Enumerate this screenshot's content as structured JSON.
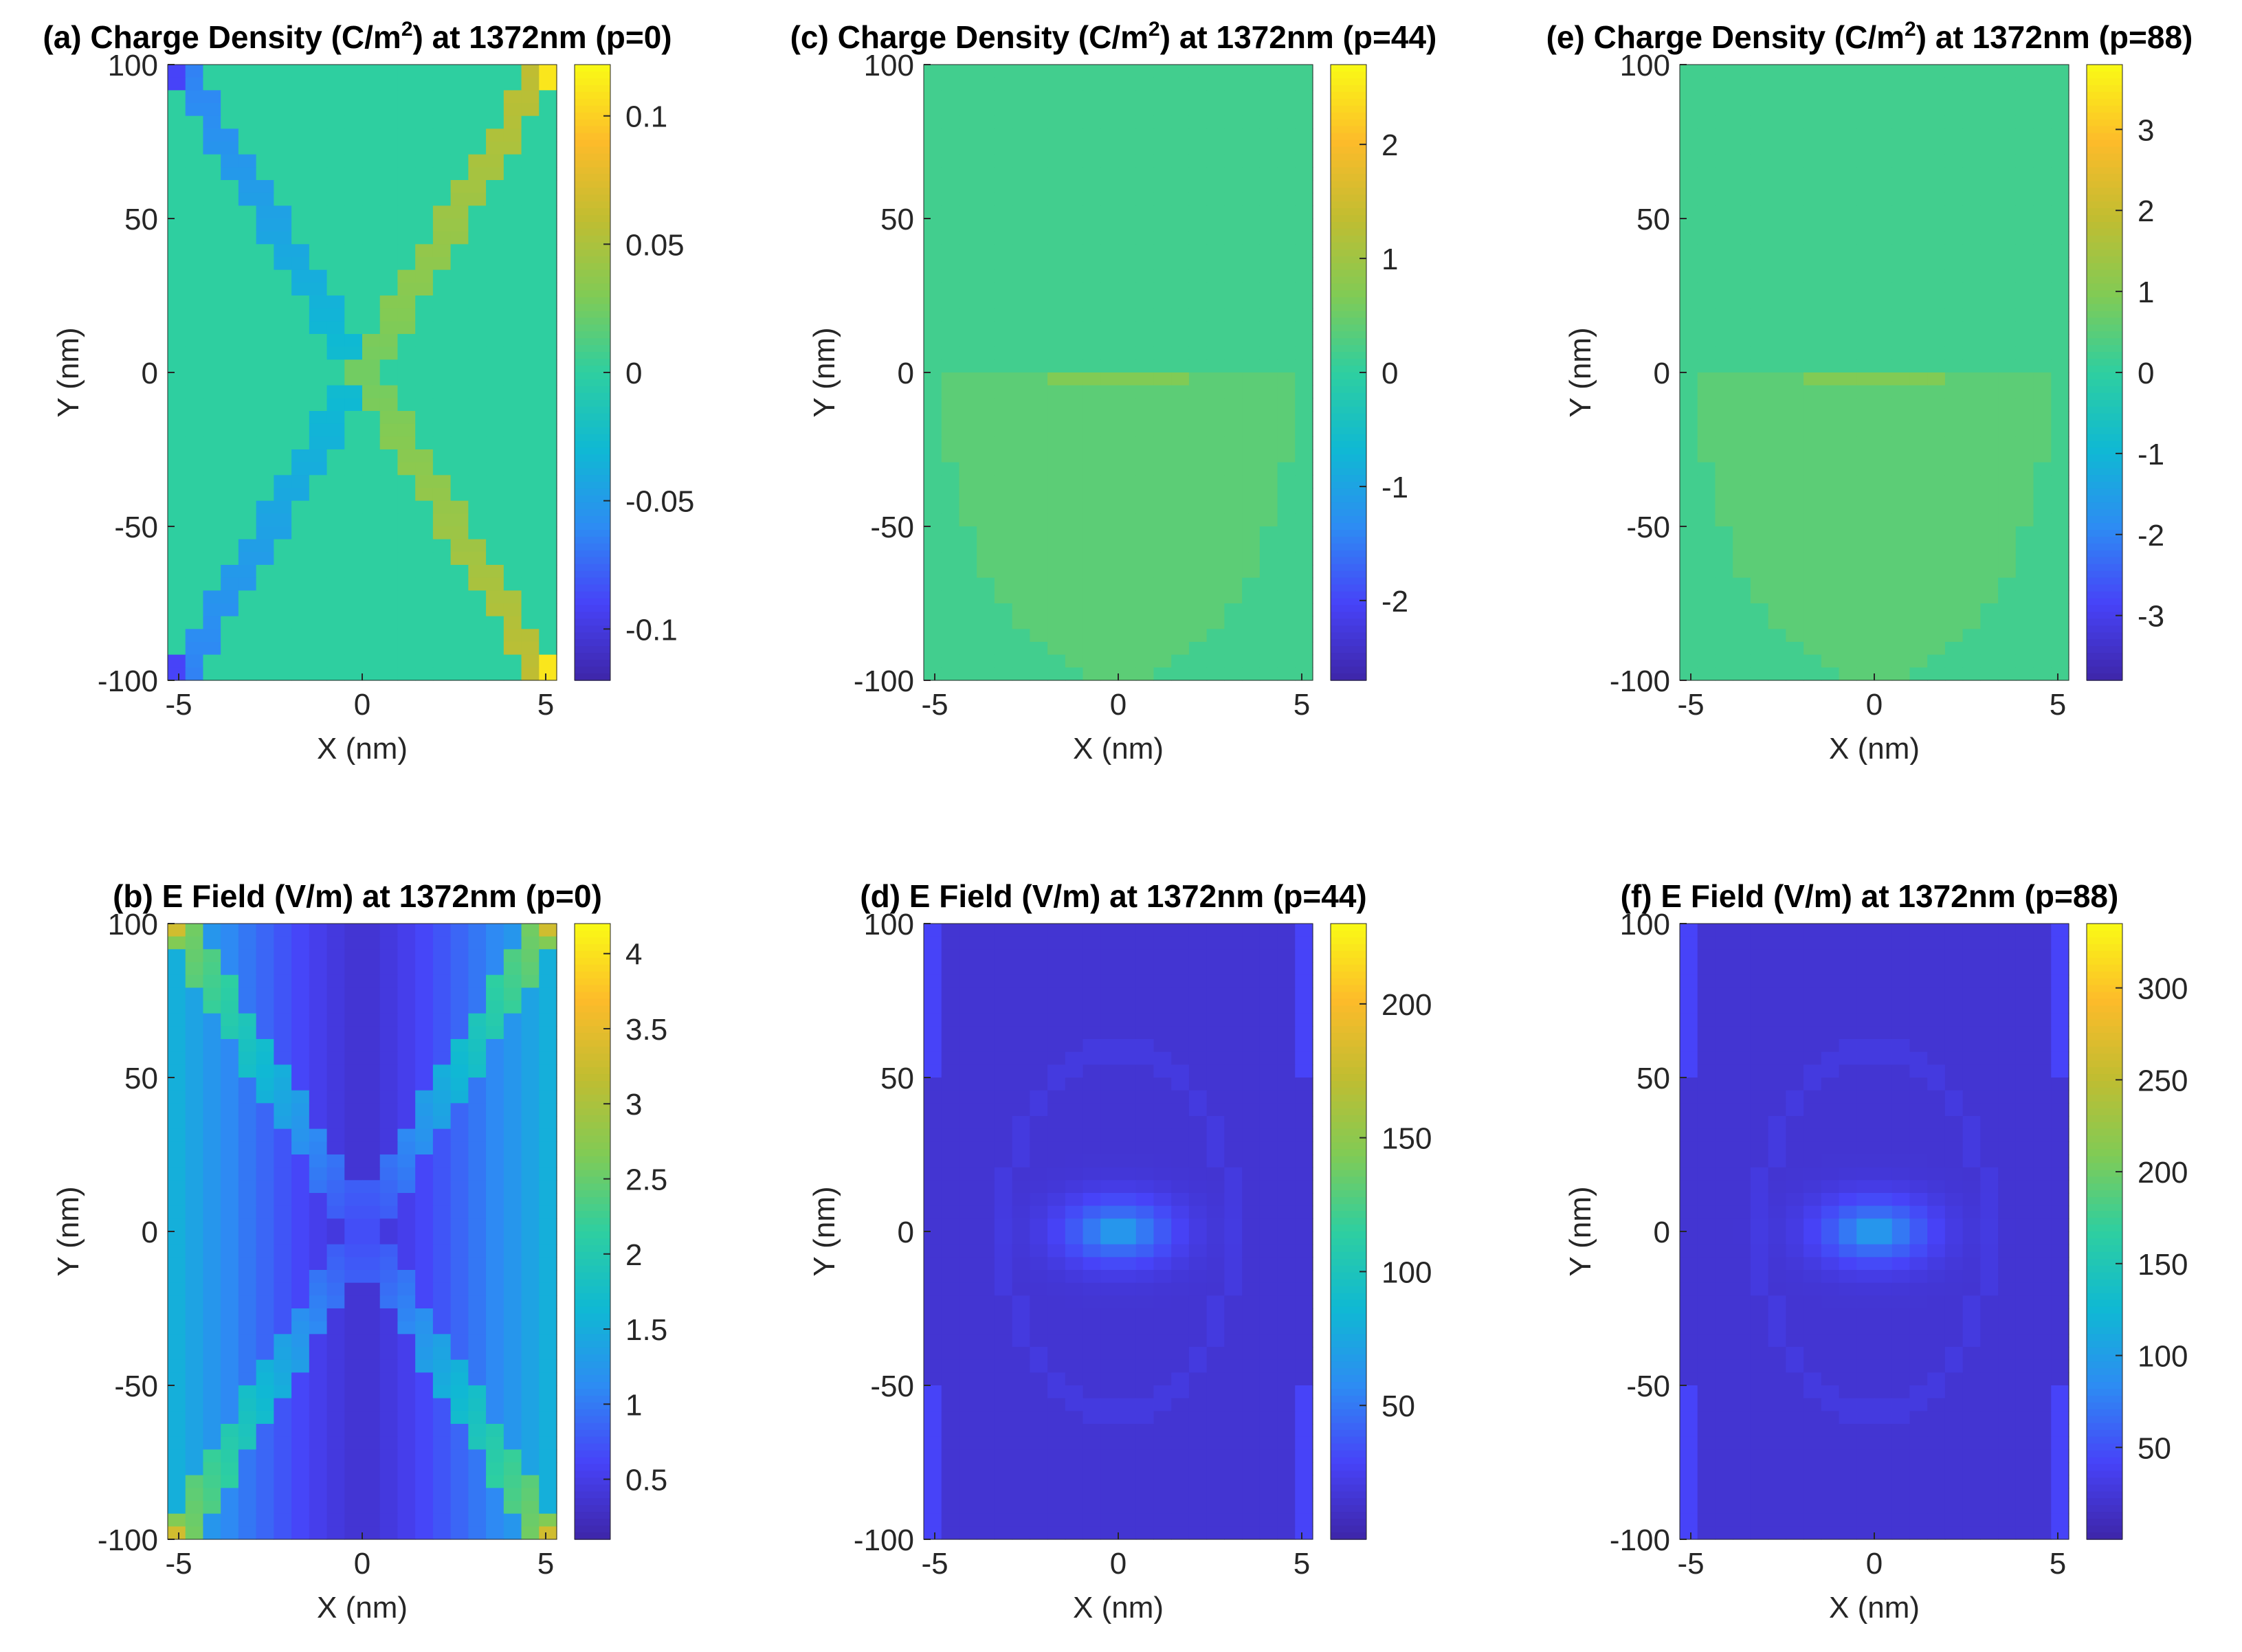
{
  "figure": {
    "colormap": [
      "#3e26a8",
      "#4743f8",
      "#2d8cf3",
      "#0fb9d3",
      "#2ecfa0",
      "#81cb55",
      "#c1bd31",
      "#fdbb2a",
      "#f9fb15"
    ]
  },
  "chart_data": [
    {
      "id": "a",
      "type": "heatmap",
      "title_pre": "(a) Charge Density (C/m",
      "title_sup": "2",
      "title_post": ") at 1372nm (p=0)",
      "title": "(a) Charge Density (C/m2) at 1372nm (p=0)",
      "xlabel": "X (nm)",
      "ylabel": "Y (nm)",
      "xlim": [
        -5.3,
        5.3
      ],
      "ylim": [
        -100,
        100
      ],
      "xticks": [
        -5,
        0,
        5
      ],
      "xtick_labels": [
        "-5",
        "0",
        "5"
      ],
      "yticks": [
        100,
        50,
        0,
        -50,
        -100
      ],
      "ytick_labels": [
        "100",
        "50",
        "0",
        "-50",
        "-100"
      ],
      "clim": [
        -0.12,
        0.12
      ],
      "cticks": [
        0.1,
        0.05,
        0,
        -0.05,
        -0.1
      ],
      "ctick_labels": [
        "0.1",
        "0.05",
        "0",
        "-0.05",
        "-0.1"
      ],
      "pattern": "x-lines",
      "background": 0.0
    },
    {
      "id": "b",
      "type": "heatmap",
      "title": "(b) E Field (V/m) at 1372nm (p=0)",
      "xlabel": "X (nm)",
      "ylabel": "Y (nm)",
      "xlim": [
        -5.3,
        5.3
      ],
      "ylim": [
        -100,
        100
      ],
      "xticks": [
        -5,
        0,
        5
      ],
      "xtick_labels": [
        "-5",
        "0",
        "5"
      ],
      "yticks": [
        100,
        50,
        0,
        -50,
        -100
      ],
      "ytick_labels": [
        "100",
        "50",
        "0",
        "-50",
        "-100"
      ],
      "clim": [
        0.1,
        4.2
      ],
      "cticks": [
        4,
        3.5,
        3,
        2.5,
        2,
        1.5,
        1,
        0.5
      ],
      "ctick_labels": [
        "4",
        "3.5",
        "3",
        "2.5",
        "2",
        "1.5",
        "1",
        "0.5"
      ],
      "pattern": "x-field",
      "background": 1.0
    },
    {
      "id": "c",
      "type": "heatmap",
      "title_pre": "(c) Charge Density (C/m",
      "title_sup": "2",
      "title_post": ") at 1372nm (p=44)",
      "title": "(c) Charge Density (C/m2) at 1372nm (p=44)",
      "xlabel": "X (nm)",
      "ylabel": "Y (nm)",
      "xlim": [
        -5.3,
        5.3
      ],
      "ylim": [
        -100,
        100
      ],
      "xticks": [
        -5,
        0,
        5
      ],
      "xtick_labels": [
        "-5",
        "0",
        "5"
      ],
      "yticks": [
        100,
        50,
        0,
        -50,
        -100
      ],
      "ytick_labels": [
        "100",
        "50",
        "0",
        "-50",
        "-100"
      ],
      "clim": [
        -2.7,
        2.7
      ],
      "cticks": [
        2,
        1,
        0,
        -1,
        -2
      ],
      "ctick_labels": [
        "2",
        "1",
        "0",
        "-1",
        "-2"
      ],
      "pattern": "arc-charge",
      "background": 0.0
    },
    {
      "id": "d",
      "type": "heatmap",
      "title": "(d) E Field (V/m) at 1372nm (p=44)",
      "xlabel": "X (nm)",
      "ylabel": "Y (nm)",
      "xlim": [
        -5.3,
        5.3
      ],
      "ylim": [
        -100,
        100
      ],
      "xticks": [
        -5,
        0,
        5
      ],
      "xtick_labels": [
        "-5",
        "0",
        "5"
      ],
      "yticks": [
        100,
        50,
        0,
        -50,
        -100
      ],
      "ytick_labels": [
        "100",
        "50",
        "0",
        "-50",
        "-100"
      ],
      "clim": [
        0,
        230
      ],
      "cticks": [
        200,
        150,
        100,
        50
      ],
      "ctick_labels": [
        "200",
        "150",
        "100",
        "50"
      ],
      "pattern": "hotspot",
      "background": 15
    },
    {
      "id": "e",
      "type": "heatmap",
      "title_pre": "(e) Charge Density (C/m",
      "title_sup": "2",
      "title_post": ") at 1372nm (p=88)",
      "title": "(e) Charge Density (C/m2) at 1372nm (p=88)",
      "xlabel": "X (nm)",
      "ylabel": "Y (nm)",
      "xlim": [
        -5.3,
        5.3
      ],
      "ylim": [
        -100,
        100
      ],
      "xticks": [
        -5,
        0,
        5
      ],
      "xtick_labels": [
        "-5",
        "0",
        "5"
      ],
      "yticks": [
        100,
        50,
        0,
        -50,
        -100
      ],
      "ytick_labels": [
        "100",
        "50",
        "0",
        "-50",
        "-100"
      ],
      "clim": [
        -3.8,
        3.8
      ],
      "cticks": [
        3,
        2,
        1,
        0,
        -1,
        -2,
        -3
      ],
      "ctick_labels": [
        "3",
        "2",
        "1",
        "0",
        "-1",
        "-2",
        "-3"
      ],
      "pattern": "arc-charge",
      "background": 0.0
    },
    {
      "id": "f",
      "type": "heatmap",
      "title": "(f) E Field (V/m) at 1372nm (p=88)",
      "xlabel": "X (nm)",
      "ylabel": "Y (nm)",
      "xlim": [
        -5.3,
        5.3
      ],
      "ylim": [
        -100,
        100
      ],
      "xticks": [
        -5,
        0,
        5
      ],
      "xtick_labels": [
        "-5",
        "0",
        "5"
      ],
      "yticks": [
        100,
        50,
        0,
        -50,
        -100
      ],
      "ytick_labels": [
        "100",
        "50",
        "0",
        "-50",
        "-100"
      ],
      "clim": [
        0,
        335
      ],
      "cticks": [
        300,
        250,
        200,
        150,
        100,
        50
      ],
      "ctick_labels": [
        "300",
        "250",
        "200",
        "150",
        "100",
        "50"
      ],
      "pattern": "hotspot",
      "background": 22
    }
  ]
}
